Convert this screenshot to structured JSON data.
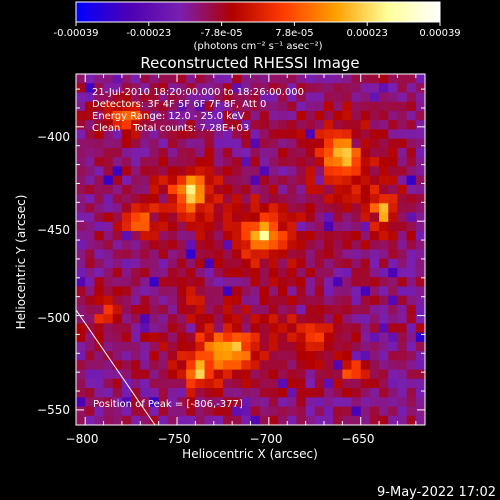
{
  "colorbar": {
    "ticks": [
      "-0.00039",
      "-0.00023",
      "-7.8e-05",
      "7.8e-05",
      "0.00023",
      "0.00039"
    ],
    "unit_label": "(photons cm⁻² s⁻¹ asec⁻²)",
    "range": [
      -0.00039,
      0.00039
    ],
    "colors": [
      "#0000ff",
      "#4b00b4",
      "#7a1fb0",
      "#b00000",
      "#ff3c00",
      "#ffa000",
      "#ffff9a",
      "#ffffff"
    ]
  },
  "chart_data": {
    "type": "heatmap",
    "title": "Reconstructed RHESSI Image",
    "xlabel": "Heliocentric X (arcsec)",
    "ylabel": "Heliocentric Y (arcsec)",
    "xlim": [
      -805,
      -615
    ],
    "ylim": [
      -558,
      -372
    ],
    "xticks": [
      -800,
      -750,
      -700,
      -650
    ],
    "yticks": [
      -400,
      -450,
      -500,
      -550
    ],
    "xtick_labels": [
      "−800",
      "−750",
      "−700",
      "−650"
    ],
    "ytick_labels": [
      "−400",
      "−450",
      "−500",
      "−550"
    ],
    "annotations": [
      "21-Jul-2010 18:20:00.000 to 18:26:00.000",
      "Detectors: 3F 4F 5F 6F 7F 8F, Att 0",
      "Energy Range: 12.0 - 25.0 keV",
      "Clean    Total counts: 7.28E+03"
    ],
    "peak_label": "Position of Peak = [-806,-377]",
    "peak": [
      -806,
      -377
    ],
    "limb_line": {
      "from": [
        -805,
        -497
      ],
      "to": [
        -762,
        -558
      ]
    },
    "sources": [
      {
        "x": -742,
        "y": -435,
        "sx": 11,
        "sy": 10,
        "a": 1.0
      },
      {
        "x": -770,
        "y": -450,
        "sx": 8,
        "sy": 6,
        "a": 0.7
      },
      {
        "x": -703,
        "y": -458,
        "sx": 13,
        "sy": 11,
        "a": 0.95
      },
      {
        "x": -660,
        "y": -415,
        "sx": 12,
        "sy": 13,
        "a": 0.9
      },
      {
        "x": -638,
        "y": -445,
        "sx": 8,
        "sy": 9,
        "a": 0.75
      },
      {
        "x": -778,
        "y": -395,
        "sx": 8,
        "sy": 7,
        "a": 0.75
      },
      {
        "x": -722,
        "y": -518,
        "sx": 18,
        "sy": 12,
        "a": 0.8
      },
      {
        "x": -738,
        "y": -530,
        "sx": 6,
        "sy": 8,
        "a": 0.65
      },
      {
        "x": -655,
        "y": -530,
        "sx": 7,
        "sy": 6,
        "a": 0.6
      },
      {
        "x": -676,
        "y": -508,
        "sx": 10,
        "sy": 8,
        "a": 0.55
      },
      {
        "x": -790,
        "y": -500,
        "sx": 7,
        "sy": 7,
        "a": 0.45
      },
      {
        "x": -742,
        "y": -490,
        "sx": 6,
        "sy": 6,
        "a": 0.35
      }
    ]
  },
  "footer": {
    "date": "9-May-2022 17:02"
  }
}
